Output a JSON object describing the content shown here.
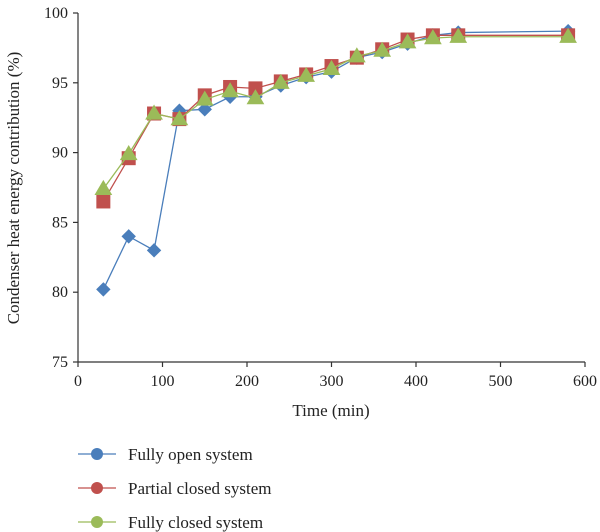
{
  "chart_data": {
    "type": "line",
    "title": "",
    "xlabel": "Time (min)",
    "ylabel": "Condenser heat energy contribution (%)",
    "xlim": [
      0,
      600
    ],
    "ylim": [
      75,
      100
    ],
    "xticks": [
      0,
      100,
      200,
      300,
      400,
      500,
      600
    ],
    "yticks": [
      75,
      80,
      85,
      90,
      95,
      100
    ],
    "grid": false,
    "legend_position": "bottom",
    "series": [
      {
        "name": "Fully open system",
        "color": "#4a7ebb",
        "marker": "diamond",
        "x": [
          30,
          60,
          90,
          120,
          150,
          180,
          210,
          240,
          270,
          300,
          330,
          360,
          390,
          420,
          450,
          580
        ],
        "values": [
          80.2,
          84.0,
          83.0,
          93.0,
          93.1,
          94.0,
          94.0,
          94.8,
          95.4,
          95.8,
          96.8,
          97.2,
          97.8,
          98.4,
          98.6,
          98.7
        ]
      },
      {
        "name": "Partial closed system",
        "color": "#c0504d",
        "marker": "square",
        "x": [
          30,
          60,
          90,
          120,
          150,
          180,
          210,
          240,
          270,
          300,
          330,
          360,
          390,
          420,
          450,
          580
        ],
        "values": [
          86.5,
          89.6,
          92.8,
          92.4,
          94.1,
          94.7,
          94.6,
          95.1,
          95.6,
          96.2,
          96.8,
          97.4,
          98.1,
          98.4,
          98.4,
          98.4
        ]
      },
      {
        "name": "Fully closed system",
        "color": "#9bbb59",
        "marker": "triangle",
        "x": [
          30,
          60,
          90,
          120,
          150,
          180,
          210,
          240,
          270,
          300,
          330,
          360,
          390,
          420,
          450,
          580
        ],
        "values": [
          87.4,
          89.9,
          92.8,
          92.4,
          93.8,
          94.4,
          93.9,
          95.0,
          95.5,
          96.0,
          96.9,
          97.3,
          97.9,
          98.2,
          98.3,
          98.3
        ]
      }
    ]
  }
}
